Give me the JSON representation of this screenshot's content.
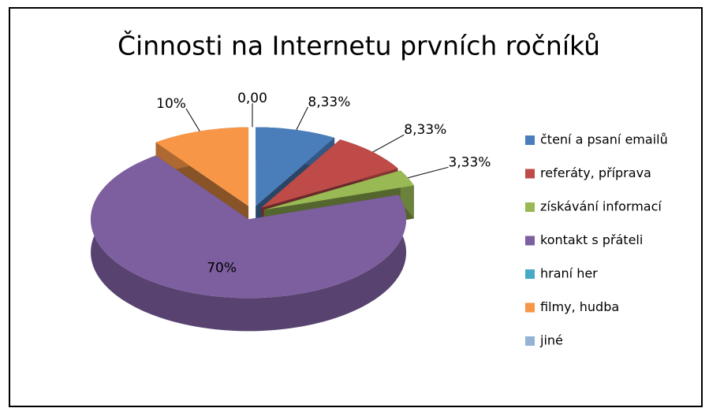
{
  "chart_data": {
    "type": "pie",
    "title": "Činnosti na Internetu prvních ročníků",
    "categories": [
      "čtení a psaní emailů",
      "referáty, příprava",
      "získávání informací",
      "kontakt s přáteli",
      "hraní her",
      "filmy, hudba",
      "jiné"
    ],
    "values": [
      8.33,
      8.33,
      3.33,
      70,
      0,
      10,
      0
    ],
    "value_labels": [
      "8,33%",
      "8,33%",
      "3,33%",
      "70%",
      null,
      "10%",
      "0,00"
    ],
    "colors": [
      "#4a7ebb",
      "#be4b48",
      "#98b954",
      "#7d5fa0",
      "#46aac5",
      "#f79646",
      "#95b3d7"
    ],
    "legend": "right"
  }
}
